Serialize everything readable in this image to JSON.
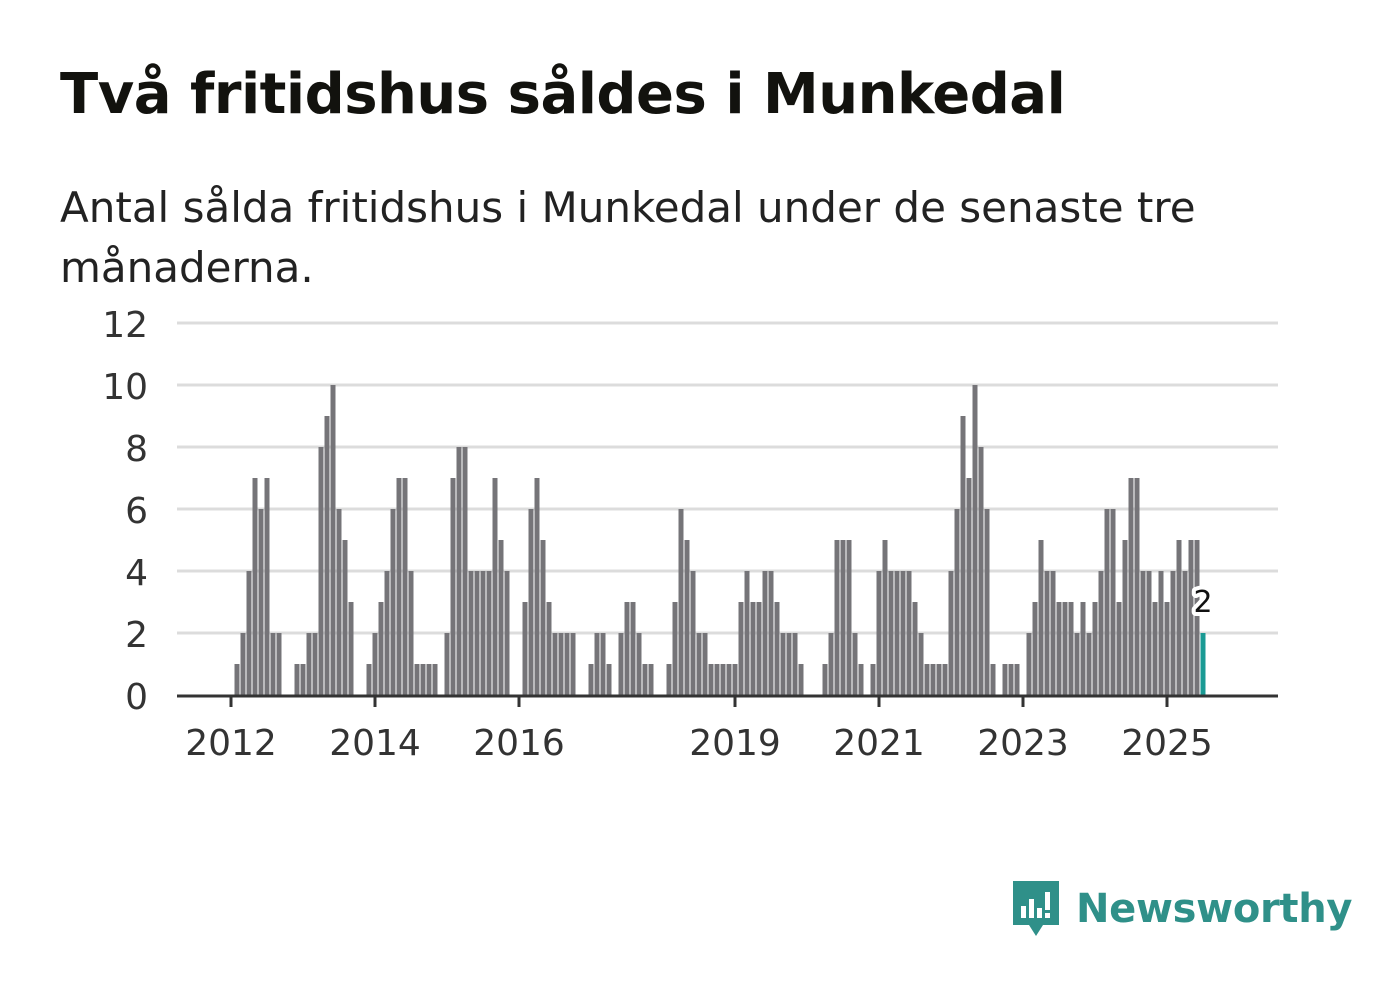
{
  "title": "Två fritidshus såldes i Munkedal",
  "subtitle": "Antal sålda fritidshus i Munkedal under de senaste tre månaderna.",
  "brand": {
    "name": "Newsworthy"
  },
  "colors": {
    "bar": "#757478",
    "highlight": "#1a9a94",
    "grid": "#dcdcdc",
    "axis": "#333333",
    "brand": "#2f9089"
  },
  "chart_data": {
    "type": "bar",
    "title": "Två fritidshus såldes i Munkedal",
    "xlabel": "",
    "ylabel": "",
    "ylim": [
      0,
      12
    ],
    "yticks": [
      "0",
      "2",
      "4",
      "6",
      "8",
      "10",
      "12"
    ],
    "year_labels": [
      {
        "label": "2012",
        "index": 0
      },
      {
        "label": "2014",
        "index": 24
      },
      {
        "label": "2016",
        "index": 48
      },
      {
        "label": "2019",
        "index": 84
      },
      {
        "label": "2021",
        "index": 108
      },
      {
        "label": "2023",
        "index": 132
      },
      {
        "label": "2025",
        "index": 156
      }
    ],
    "start_offset": -3,
    "highlight_label": "2",
    "values": [
      0,
      0,
      0,
      0,
      1,
      2,
      4,
      7,
      6,
      7,
      2,
      2,
      0,
      0,
      1,
      1,
      2,
      2,
      8,
      9,
      10,
      6,
      5,
      3,
      0,
      0,
      1,
      2,
      3,
      4,
      6,
      7,
      7,
      4,
      1,
      1,
      1,
      1,
      0,
      2,
      7,
      8,
      8,
      4,
      4,
      4,
      4,
      7,
      5,
      4,
      0,
      0,
      3,
      6,
      7,
      5,
      3,
      2,
      2,
      2,
      2,
      0,
      0,
      1,
      2,
      2,
      1,
      0,
      2,
      3,
      3,
      2,
      1,
      1,
      0,
      0,
      1,
      3,
      6,
      5,
      4,
      2,
      2,
      1,
      1,
      1,
      1,
      1,
      3,
      4,
      3,
      3,
      4,
      4,
      3,
      2,
      2,
      2,
      1,
      0,
      0,
      0,
      1,
      2,
      5,
      5,
      5,
      2,
      1,
      0,
      1,
      4,
      5,
      4,
      4,
      4,
      4,
      3,
      2,
      1,
      1,
      1,
      1,
      4,
      6,
      9,
      7,
      10,
      8,
      6,
      1,
      0,
      1,
      1,
      1,
      0,
      2,
      3,
      5,
      4,
      4,
      3,
      3,
      3,
      2,
      3,
      2,
      3,
      4,
      6,
      6,
      3,
      5,
      7,
      7,
      4,
      4,
      3,
      4,
      3,
      4,
      5,
      4,
      5,
      5,
      2
    ]
  }
}
